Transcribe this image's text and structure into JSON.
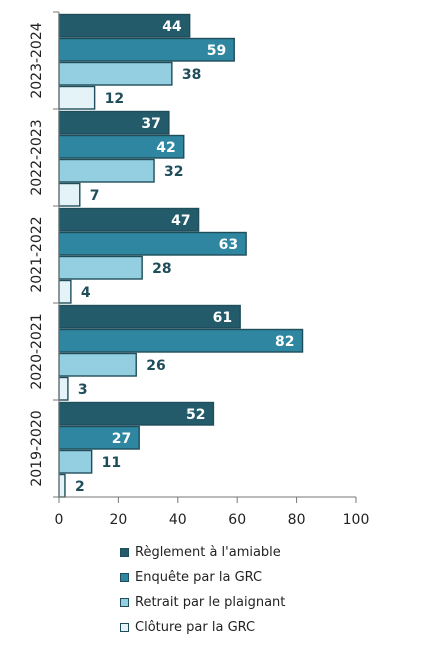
{
  "chart_data": {
    "type": "bar",
    "orientation": "horizontal",
    "categories": [
      "2023-2024",
      "2022-2023",
      "2021-2022",
      "2020-2021",
      "2019-2020"
    ],
    "series": [
      {
        "name": "Règlement à l'amiable",
        "color": "#235b6b",
        "label_color": "#ffffff",
        "values": [
          44,
          37,
          47,
          61,
          52
        ]
      },
      {
        "name": "Enquête par la GRC",
        "color": "#2e86a0",
        "label_color": "#ffffff",
        "values": [
          59,
          42,
          63,
          82,
          27
        ]
      },
      {
        "name": "Retrait par le plaignant",
        "color": "#93cfe0",
        "label_color": "#1f4d5a",
        "values": [
          38,
          32,
          28,
          26,
          11
        ]
      },
      {
        "name": "Clôture par la GRC",
        "color": "#e4f3f8",
        "label_color": "#1f4d5a",
        "values": [
          12,
          7,
          4,
          3,
          2
        ]
      }
    ],
    "x_ticks": [
      "0",
      "20",
      "40",
      "60",
      "80",
      "100"
    ],
    "xlim": [
      0,
      100
    ],
    "grid": false,
    "legend_position": "bottom",
    "bar_border_color": "#1f4d5a"
  }
}
